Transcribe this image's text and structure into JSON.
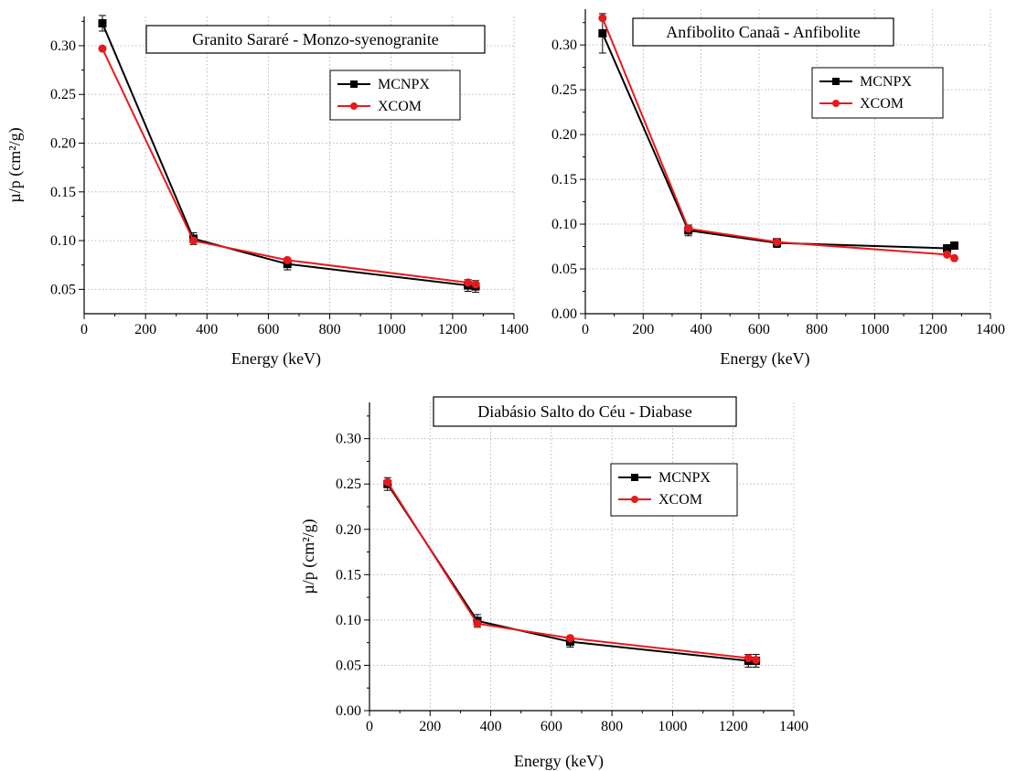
{
  "chart_data": [
    {
      "type": "line",
      "title": "Granito Sararé - Monzo-syenogranite",
      "xlabel": "Energy (keV)",
      "ylabel": "µ/p (cm²/g)",
      "xlim": [
        0,
        1400
      ],
      "ylim": [
        0.025,
        0.33
      ],
      "xticks": [
        "0",
        "200",
        "400",
        "600",
        "800",
        "1000",
        "1200",
        "1400"
      ],
      "yticks": [
        "0.05",
        "0.10",
        "0.15",
        "0.20",
        "0.25",
        "0.30"
      ],
      "grid": true,
      "legend_position": "top-right",
      "series": [
        {
          "name": "MCNPX",
          "color": "#000000",
          "marker": "square",
          "x": [
            59.5,
            356,
            662,
            1250,
            1275
          ],
          "y": [
            0.323,
            0.102,
            0.076,
            0.054,
            0.053
          ],
          "err": [
            0.008,
            0.006,
            0.006,
            0.006,
            0.006
          ]
        },
        {
          "name": "XCOM",
          "color": "#e8191c",
          "marker": "circle",
          "x": [
            59.5,
            356,
            662,
            1250,
            1275
          ],
          "y": [
            0.297,
            0.1,
            0.08,
            0.057,
            0.055
          ],
          "err": [
            0,
            0,
            0,
            0,
            0
          ]
        }
      ]
    },
    {
      "type": "line",
      "title": "Anfibolito Canaã - Anfibolite",
      "xlabel": "Energy (keV)",
      "ylabel": "",
      "xlim": [
        0,
        1400
      ],
      "ylim": [
        0.0,
        0.34
      ],
      "xticks": [
        "0",
        "200",
        "400",
        "600",
        "800",
        "1000",
        "1200",
        "1400"
      ],
      "yticks": [
        "0.00",
        "0.05",
        "0.10",
        "0.15",
        "0.20",
        "0.25",
        "0.30"
      ],
      "grid": true,
      "legend_position": "top-right",
      "series": [
        {
          "name": "MCNPX",
          "color": "#000000",
          "marker": "square",
          "x": [
            59.5,
            356,
            662,
            1250,
            1275
          ],
          "y": [
            0.313,
            0.093,
            0.079,
            0.073,
            0.076
          ],
          "err": [
            0.022,
            0.006,
            0.005,
            0.004,
            0.003
          ]
        },
        {
          "name": "XCOM",
          "color": "#e8191c",
          "marker": "circle",
          "x": [
            59.5,
            356,
            662,
            1250,
            1275
          ],
          "y": [
            0.33,
            0.095,
            0.08,
            0.066,
            0.062
          ],
          "err": [
            0,
            0,
            0,
            0,
            0
          ]
        }
      ]
    },
    {
      "type": "line",
      "title": "Diabásio Salto do Céu - Diabase",
      "xlabel": "Energy (keV)",
      "ylabel": "µ/p (cm²/g)",
      "xlim": [
        0,
        1400
      ],
      "ylim": [
        0.0,
        0.34
      ],
      "xticks": [
        "0",
        "200",
        "400",
        "600",
        "800",
        "1000",
        "1200",
        "1400"
      ],
      "yticks": [
        "0.00",
        "0.05",
        "0.10",
        "0.15",
        "0.20",
        "0.25",
        "0.30"
      ],
      "grid": true,
      "legend_position": "top-right",
      "series": [
        {
          "name": "MCNPX",
          "color": "#000000",
          "marker": "square",
          "x": [
            59.5,
            356,
            662,
            1250,
            1275
          ],
          "y": [
            0.25,
            0.099,
            0.076,
            0.055,
            0.055
          ],
          "err": [
            0.007,
            0.007,
            0.006,
            0.007,
            0.007
          ]
        },
        {
          "name": "XCOM",
          "color": "#e8191c",
          "marker": "circle",
          "x": [
            59.5,
            356,
            662,
            1250,
            1275
          ],
          "y": [
            0.252,
            0.096,
            0.08,
            0.058,
            0.056
          ],
          "err": [
            0,
            0,
            0,
            0,
            0
          ]
        }
      ]
    }
  ]
}
